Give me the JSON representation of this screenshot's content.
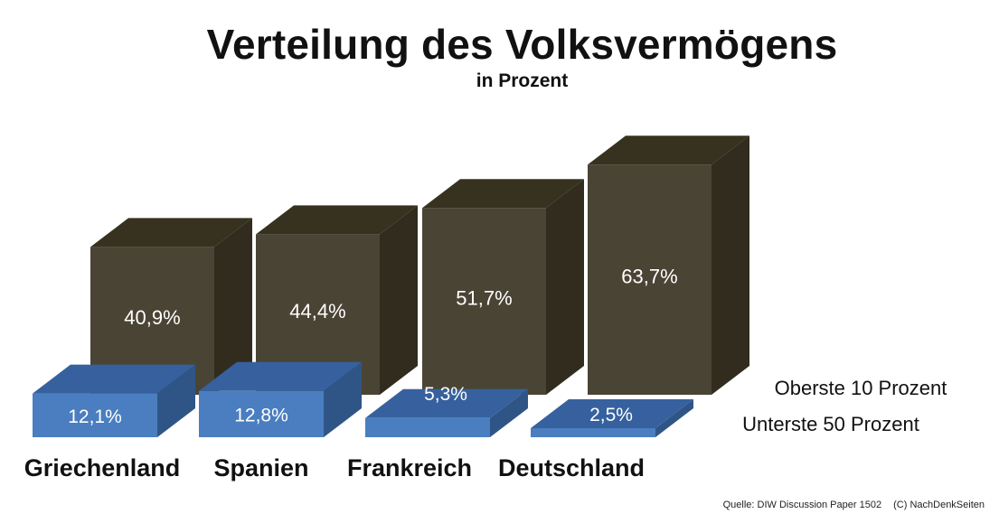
{
  "title": "Verteilung des Volksvermögens",
  "subtitle": "in Prozent",
  "source": "Quelle: DIW Discussion Paper 1502",
  "copyright": "(C) NachDenkSeiten",
  "colors": {
    "top10_front": "#4a4435",
    "top10_top": "#37321f",
    "top10_side": "#312c1e",
    "bottom50_front": "#4a7ec0",
    "bottom50_top": "#36619e",
    "bottom50_side": "#2f5587"
  },
  "chart_data": {
    "type": "bar",
    "categories": [
      "Griechenland",
      "Spanien",
      "Frankreich",
      "Deutschland"
    ],
    "series": [
      {
        "name": "Oberste 10 Prozent",
        "values": [
          40.9,
          44.4,
          51.7,
          63.7
        ],
        "labels": [
          "40,9%",
          "44,4%",
          "51,7%",
          "63,7%"
        ]
      },
      {
        "name": "Unterste 50 Prozent",
        "values": [
          12.1,
          12.8,
          5.3,
          2.5
        ],
        "labels": [
          "12,1%",
          "12,8%",
          "5,3%",
          "2,5%"
        ]
      }
    ],
    "title": "Verteilung des Volksvermögens",
    "subtitle": "in Prozent",
    "legend_position": "right"
  }
}
